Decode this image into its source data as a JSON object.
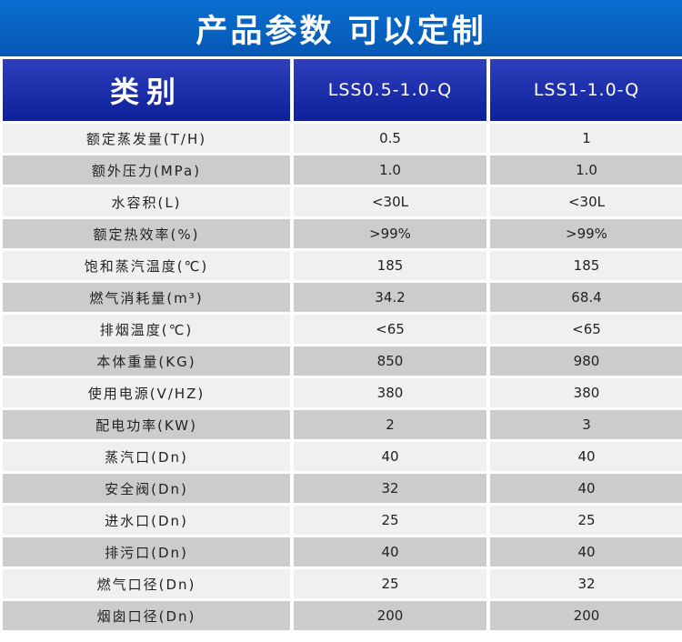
{
  "banner": {
    "title": "产品参数 可以定制"
  },
  "table": {
    "headers": [
      "类别",
      "LSS0.5-1.0-Q",
      "LSS1-1.0-Q"
    ],
    "rows": [
      [
        "额定蒸发量(T/H)",
        "0.5",
        "1"
      ],
      [
        "额外压力(MPa)",
        "1.0",
        "1.0"
      ],
      [
        "水容积(L)",
        "<30L",
        "<30L"
      ],
      [
        "额定热效率(%)",
        ">99%",
        ">99%"
      ],
      [
        "饱和蒸汽温度(℃)",
        "185",
        "185"
      ],
      [
        "燃气消耗量(m³)",
        "34.2",
        "68.4"
      ],
      [
        "排烟温度(℃)",
        "<65",
        "<65"
      ],
      [
        "本体重量(KG)",
        "850",
        "980"
      ],
      [
        "使用电源(V/HZ)",
        "380",
        "380"
      ],
      [
        "配电功率(KW)",
        "2",
        "3"
      ],
      [
        "蒸汽口(Dn)",
        "40",
        "40"
      ],
      [
        "安全阀(Dn)",
        "32",
        "40"
      ],
      [
        "进水口(Dn)",
        "25",
        "25"
      ],
      [
        "排污口(Dn)",
        "40",
        "40"
      ],
      [
        "燃气口径(Dn)",
        "25",
        "32"
      ],
      [
        "烟囱口径(Dn)",
        "200",
        "200"
      ]
    ]
  }
}
